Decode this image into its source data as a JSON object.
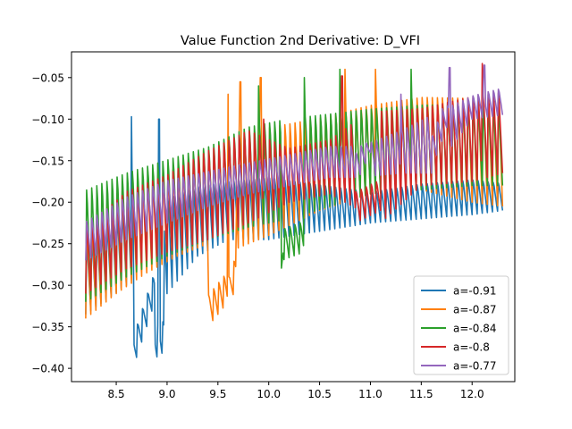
{
  "chart_data": {
    "type": "line",
    "title": "Value Function 2nd Derivative: D_VFI",
    "xlabel": "",
    "ylabel": "",
    "xlim": [
      8.06,
      12.42
    ],
    "ylim": [
      -0.416,
      -0.019
    ],
    "x_ticks": [
      8.5,
      9.0,
      9.5,
      10.0,
      10.5,
      11.0,
      11.5,
      12.0
    ],
    "x_tick_labels": [
      "8.5",
      "9.0",
      "9.5",
      "10.0",
      "10.5",
      "11.0",
      "11.5",
      "12.0"
    ],
    "y_ticks": [
      -0.4,
      -0.35,
      -0.3,
      -0.25,
      -0.2,
      -0.15,
      -0.1,
      -0.05
    ],
    "y_tick_labels": [
      "−0.40",
      "−0.35",
      "−0.30",
      "−0.25",
      "−0.20",
      "−0.15",
      "−0.10",
      "−0.05"
    ],
    "grid": false,
    "legend_position": "lower right",
    "series": [
      {
        "name": "a=-0.91",
        "color": "#1f77b4",
        "x_range": [
          8.2,
          12.3
        ],
        "oscillation_period": 0.05,
        "lower_envelope": [
          [
            8.2,
            -0.335
          ],
          [
            8.6,
            -0.3
          ],
          [
            8.7,
            -0.3
          ],
          [
            9.0,
            -0.31
          ],
          [
            9.3,
            -0.265
          ],
          [
            9.6,
            -0.245
          ],
          [
            10.0,
            -0.245
          ],
          [
            10.5,
            -0.235
          ],
          [
            11.0,
            -0.225
          ],
          [
            11.5,
            -0.22
          ],
          [
            12.0,
            -0.215
          ],
          [
            12.3,
            -0.21
          ]
        ],
        "upper_envelope": [
          [
            8.2,
            -0.245
          ],
          [
            8.6,
            -0.2
          ],
          [
            8.9,
            -0.19
          ],
          [
            9.3,
            -0.175
          ],
          [
            9.6,
            -0.17
          ],
          [
            10.0,
            -0.165
          ],
          [
            10.5,
            -0.175
          ],
          [
            11.0,
            -0.185
          ],
          [
            11.5,
            -0.175
          ],
          [
            12.0,
            -0.17
          ],
          [
            12.3,
            -0.175
          ]
        ],
        "spikes": [
          [
            8.65,
            -0.097
          ],
          [
            8.92,
            -0.1
          ]
        ],
        "drop_segments": [
          [
            8.67,
            8.88,
            -0.398,
            -0.32
          ],
          [
            8.88,
            8.97,
            -0.388,
            -0.38
          ]
        ]
      },
      {
        "name": "a=-0.87",
        "color": "#ff7f0e",
        "x_range": [
          8.2,
          12.3
        ],
        "oscillation_period": 0.05,
        "lower_envelope": [
          [
            8.2,
            -0.34
          ],
          [
            8.5,
            -0.31
          ],
          [
            8.8,
            -0.285
          ],
          [
            9.1,
            -0.265
          ],
          [
            9.4,
            -0.25
          ],
          [
            9.7,
            -0.255
          ],
          [
            10.0,
            -0.24
          ],
          [
            10.5,
            -0.21
          ],
          [
            11.0,
            -0.19
          ],
          [
            11.5,
            -0.185
          ],
          [
            12.0,
            -0.2
          ],
          [
            12.3,
            -0.205
          ]
        ],
        "upper_envelope": [
          [
            8.2,
            -0.225
          ],
          [
            8.5,
            -0.18
          ],
          [
            8.8,
            -0.165
          ],
          [
            9.1,
            -0.15
          ],
          [
            9.4,
            -0.125
          ],
          [
            9.7,
            -0.115
          ],
          [
            10.0,
            -0.1
          ],
          [
            10.5,
            -0.09
          ],
          [
            11.0,
            -0.075
          ],
          [
            11.5,
            -0.065
          ],
          [
            12.0,
            -0.065
          ],
          [
            12.3,
            -0.07
          ]
        ],
        "spikes": [
          [
            9.6,
            -0.07
          ],
          [
            9.72,
            -0.055
          ],
          [
            9.92,
            -0.05
          ],
          [
            10.75,
            -0.04
          ],
          [
            11.05,
            -0.04
          ]
        ],
        "drop_segments": [
          [
            9.4,
            9.6,
            -0.35,
            -0.32
          ],
          [
            9.6,
            9.68,
            -0.33,
            -0.3
          ]
        ]
      },
      {
        "name": "a=-0.84",
        "color": "#2ca02c",
        "x_range": [
          8.2,
          12.3
        ],
        "oscillation_period": 0.05,
        "lower_envelope": [
          [
            8.2,
            -0.32
          ],
          [
            8.6,
            -0.29
          ],
          [
            9.0,
            -0.265
          ],
          [
            9.4,
            -0.245
          ],
          [
            9.8,
            -0.23
          ],
          [
            10.2,
            -0.22
          ],
          [
            10.6,
            -0.205
          ],
          [
            11.0,
            -0.19
          ],
          [
            11.5,
            -0.185
          ],
          [
            12.0,
            -0.18
          ],
          [
            12.3,
            -0.18
          ]
        ],
        "upper_envelope": [
          [
            8.2,
            -0.175
          ],
          [
            8.6,
            -0.155
          ],
          [
            9.0,
            -0.14
          ],
          [
            9.4,
            -0.125
          ],
          [
            9.8,
            -0.1
          ],
          [
            10.2,
            -0.09
          ],
          [
            10.6,
            -0.085
          ],
          [
            11.0,
            -0.08
          ],
          [
            11.5,
            -0.075
          ],
          [
            12.0,
            -0.075
          ],
          [
            12.3,
            -0.08
          ]
        ],
        "spikes": [
          [
            9.9,
            -0.06
          ],
          [
            10.35,
            -0.05
          ],
          [
            10.7,
            -0.04
          ],
          [
            11.4,
            -0.04
          ]
        ],
        "drop_segments": [
          [
            10.13,
            10.35,
            -0.27,
            -0.26
          ],
          [
            10.12,
            10.14,
            -0.315,
            -0.27
          ]
        ]
      },
      {
        "name": "a=-0.8",
        "color": "#d62728",
        "x_range": [
          8.2,
          12.3
        ],
        "oscillation_period": 0.05,
        "lower_envelope": [
          [
            8.2,
            -0.31
          ],
          [
            8.6,
            -0.28
          ],
          [
            9.0,
            -0.26
          ],
          [
            9.4,
            -0.245
          ],
          [
            9.8,
            -0.225
          ],
          [
            10.2,
            -0.2
          ],
          [
            10.6,
            -0.19
          ],
          [
            10.9,
            -0.21
          ],
          [
            11.1,
            -0.225
          ],
          [
            11.5,
            -0.18
          ],
          [
            12.0,
            -0.175
          ],
          [
            12.3,
            -0.165
          ]
        ],
        "upper_envelope": [
          [
            8.2,
            -0.225
          ],
          [
            8.6,
            -0.18
          ],
          [
            9.0,
            -0.16
          ],
          [
            9.4,
            -0.13
          ],
          [
            9.8,
            -0.105
          ],
          [
            10.2,
            -0.13
          ],
          [
            10.6,
            -0.12
          ],
          [
            11.0,
            -0.08
          ],
          [
            11.5,
            -0.08
          ],
          [
            12.0,
            -0.065
          ],
          [
            12.3,
            -0.06
          ]
        ],
        "spikes": [
          [
            9.95,
            -0.1
          ],
          [
            10.72,
            -0.048
          ],
          [
            12.1,
            -0.033
          ]
        ],
        "drop_segments": [
          [
            10.85,
            11.1,
            -0.225,
            -0.21
          ]
        ]
      },
      {
        "name": "a=-0.77",
        "color": "#9467bd",
        "x_range": [
          8.2,
          12.3
        ],
        "oscillation_period": 0.05,
        "lower_envelope": [
          [
            8.2,
            -0.27
          ],
          [
            8.6,
            -0.245
          ],
          [
            9.0,
            -0.225
          ],
          [
            9.4,
            -0.205
          ],
          [
            9.8,
            -0.19
          ],
          [
            10.2,
            -0.18
          ],
          [
            10.6,
            -0.17
          ],
          [
            10.9,
            -0.17
          ],
          [
            11.3,
            -0.165
          ],
          [
            11.6,
            -0.165
          ],
          [
            12.0,
            -0.1
          ],
          [
            12.3,
            -0.095
          ]
        ],
        "upper_envelope": [
          [
            8.2,
            -0.22
          ],
          [
            8.6,
            -0.19
          ],
          [
            9.0,
            -0.17
          ],
          [
            9.4,
            -0.16
          ],
          [
            9.8,
            -0.15
          ],
          [
            10.2,
            -0.14
          ],
          [
            10.6,
            -0.13
          ],
          [
            10.9,
            -0.13
          ],
          [
            11.3,
            -0.11
          ],
          [
            11.6,
            -0.09
          ],
          [
            12.0,
            -0.07
          ],
          [
            12.3,
            -0.06
          ]
        ],
        "spikes": [
          [
            11.3,
            -0.07
          ],
          [
            11.78,
            -0.038
          ],
          [
            12.12,
            -0.035
          ]
        ],
        "drop_segments": [
          [
            11.6,
            11.78,
            -0.16,
            -0.1
          ],
          [
            10.85,
            11.0,
            -0.18,
            -0.14
          ]
        ]
      }
    ]
  }
}
